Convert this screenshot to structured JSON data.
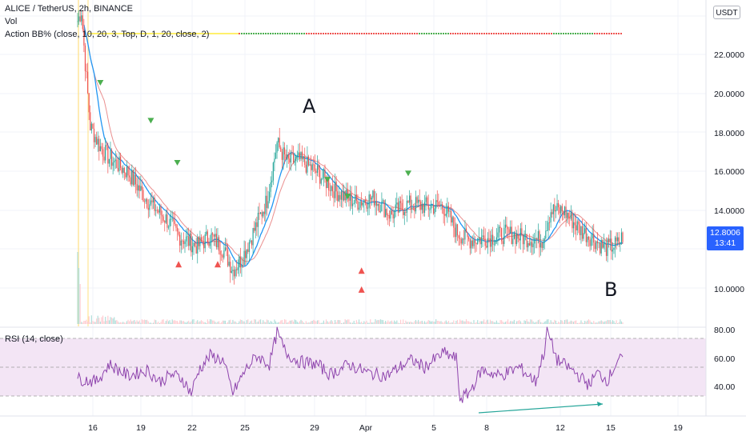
{
  "header": {
    "symbol_line": "ALICE / TetherUS, 2h, BINANCE",
    "volume_label": "Vol",
    "indicator_label": "Action BB% (close, 10, 20, 3, Top, D, 1, 20, close, 2)"
  },
  "currency_button": "USDT",
  "price_axis": {
    "labels": [
      "2",
      "22.0000",
      "20.0000",
      "18.0000",
      "16.0000",
      "14.0000",
      "10.0000"
    ]
  },
  "price_badge": {
    "price": "12.8006",
    "countdown": "13:41"
  },
  "annotations": {
    "peak_label": "A",
    "trough_label": "B"
  },
  "rsi": {
    "legend": "RSI (14, close)",
    "axis_labels": [
      "80.00",
      "60.00",
      "40.00"
    ],
    "upper_band": 70,
    "lower_band": 30,
    "color": "#8e44ad"
  },
  "time_axis": {
    "labels": [
      "16",
      "19",
      "22",
      "25",
      "29",
      "Apr",
      "5",
      "8",
      "12",
      "15",
      "19"
    ]
  },
  "colors": {
    "up": "#26a69a",
    "down": "#ef5350",
    "signal_green": "#4caf50",
    "signal_red": "#ef5350",
    "basis_line": "#2196f3",
    "rsi_band_fill": "#f3e5f5",
    "divergence_line": "#26a69a"
  },
  "chart_data": {
    "type": "candlestick",
    "y_axis_range": [
      8.5,
      24
    ],
    "price_path": [
      [
        0,
        23
      ],
      [
        3,
        23.5
      ],
      [
        6,
        21
      ],
      [
        10,
        18
      ],
      [
        18,
        17
      ],
      [
        25,
        16.5
      ],
      [
        40,
        15.8
      ],
      [
        55,
        14.5
      ],
      [
        70,
        13.6
      ],
      [
        80,
        12.8
      ],
      [
        95,
        12.3
      ],
      [
        105,
        12.8
      ],
      [
        115,
        12.2
      ],
      [
        123,
        11.2
      ],
      [
        130,
        11.7
      ],
      [
        138,
        12.8
      ],
      [
        150,
        14.5
      ],
      [
        158,
        17.2
      ],
      [
        166,
        16.3
      ],
      [
        176,
        16.4
      ],
      [
        190,
        15.8
      ],
      [
        205,
        14.9
      ],
      [
        220,
        14.4
      ],
      [
        235,
        14.6
      ],
      [
        248,
        13.8
      ],
      [
        262,
        14.3
      ],
      [
        278,
        14.2
      ],
      [
        290,
        14.2
      ],
      [
        300,
        13.0
      ],
      [
        310,
        12.6
      ],
      [
        325,
        12.7
      ],
      [
        340,
        12.9
      ],
      [
        355,
        12.7
      ],
      [
        368,
        12.6
      ],
      [
        375,
        14.0
      ],
      [
        385,
        14.0
      ],
      [
        398,
        13.1
      ],
      [
        410,
        12.6
      ],
      [
        418,
        12.2
      ],
      [
        428,
        12.4
      ],
      [
        432,
        12.8
      ]
    ],
    "rsi_path": [
      [
        0,
        42
      ],
      [
        15,
        40
      ],
      [
        25,
        52
      ],
      [
        40,
        44
      ],
      [
        55,
        48
      ],
      [
        65,
        40
      ],
      [
        75,
        45
      ],
      [
        83,
        42
      ],
      [
        90,
        32
      ],
      [
        96,
        48
      ],
      [
        105,
        58
      ],
      [
        115,
        55
      ],
      [
        123,
        32
      ],
      [
        133,
        48
      ],
      [
        142,
        58
      ],
      [
        152,
        52
      ],
      [
        158,
        74
      ],
      [
        165,
        60
      ],
      [
        175,
        54
      ],
      [
        190,
        52
      ],
      [
        200,
        45
      ],
      [
        215,
        52
      ],
      [
        230,
        46
      ],
      [
        245,
        44
      ],
      [
        255,
        50
      ],
      [
        265,
        55
      ],
      [
        275,
        50
      ],
      [
        290,
        60
      ],
      [
        300,
        56
      ],
      [
        303,
        28
      ],
      [
        310,
        32
      ],
      [
        320,
        48
      ],
      [
        335,
        44
      ],
      [
        350,
        50
      ],
      [
        363,
        40
      ],
      [
        370,
        62
      ],
      [
        372,
        76
      ],
      [
        380,
        55
      ],
      [
        392,
        48
      ],
      [
        405,
        38
      ],
      [
        412,
        46
      ],
      [
        420,
        41
      ],
      [
        428,
        55
      ]
    ],
    "signals_down": [
      [
        18,
        20.2
      ],
      [
        58,
        18.4
      ],
      [
        79,
        16.4
      ],
      [
        198,
        15.6
      ],
      [
        214,
        14.8
      ],
      [
        262,
        15.9
      ]
    ],
    "signals_up": [
      [
        80,
        11.3
      ],
      [
        111,
        11.3
      ],
      [
        225,
        11.0
      ],
      [
        225,
        10.1
      ]
    ]
  }
}
